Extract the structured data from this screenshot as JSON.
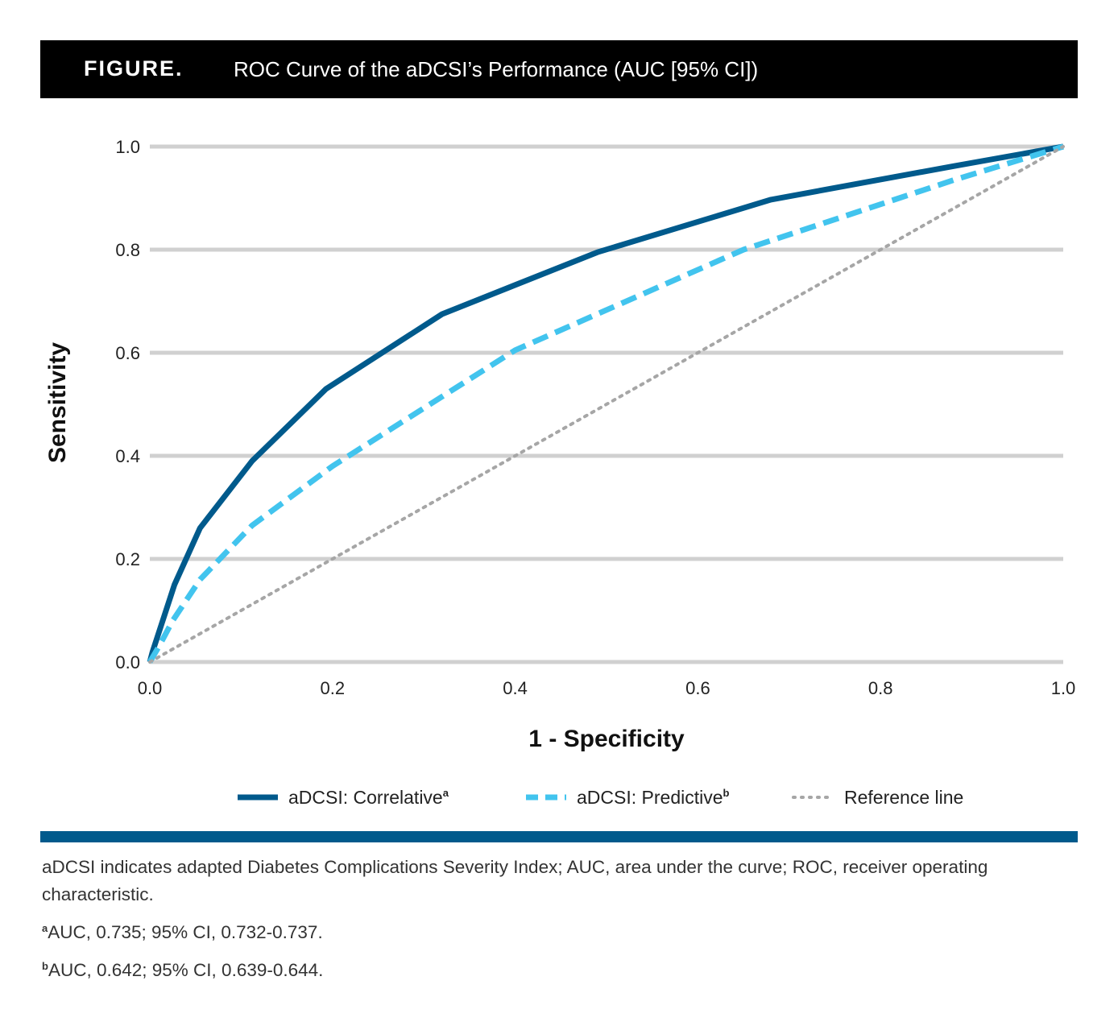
{
  "header": {
    "label": "FIGURE.",
    "title": "ROC Curve of the aDCSI’s Performance (AUC [95% CI])"
  },
  "chart_data": {
    "type": "line",
    "xlabel": "1 - Specificity",
    "ylabel": "Sensitivity",
    "xlim": [
      0,
      1
    ],
    "ylim": [
      0,
      1
    ],
    "xticks": [
      "0.0",
      "0.2",
      "0.4",
      "0.6",
      "0.8",
      "1.0"
    ],
    "yticks": [
      "0.0",
      "0.2",
      "0.4",
      "0.6",
      "0.8",
      "1.0"
    ],
    "grid": "horizontal",
    "legend_position": "bottom",
    "series": [
      {
        "name": "aDCSI: Correlative",
        "superscript": "a",
        "style": "solid",
        "color": "#005a8c",
        "x": [
          0,
          0.003,
          0.027,
          0.055,
          0.112,
          0.193,
          0.32,
          0.49,
          0.68,
          0.88,
          1.0
        ],
        "y": [
          0,
          0.02,
          0.15,
          0.26,
          0.39,
          0.53,
          0.675,
          0.795,
          0.897,
          0.962,
          1.0
        ]
      },
      {
        "name": "aDCSI: Predictive",
        "superscript": "b",
        "style": "dashed",
        "color": "#42c4ee",
        "x": [
          0,
          0.01,
          0.025,
          0.055,
          0.112,
          0.2,
          0.4,
          0.65,
          0.88,
          1.0
        ],
        "y": [
          0,
          0.03,
          0.08,
          0.16,
          0.265,
          0.38,
          0.605,
          0.8,
          0.935,
          1.0
        ]
      },
      {
        "name": "Reference line",
        "superscript": "",
        "style": "dotted",
        "color": "#a6a6a6",
        "x": [
          0,
          1
        ],
        "y": [
          0,
          1
        ]
      }
    ]
  },
  "notes": {
    "abbreviations": "aDCSI indicates adapted Diabetes Complications Severity Index; AUC, area under the curve; ROC, receiver operating characteristic.",
    "note_a_mark": "a",
    "note_a": "AUC, 0.735; 95% CI, 0.732-0.737.",
    "note_b_mark": "b",
    "note_b": "AUC, 0.642; 95% CI, 0.639-0.644."
  },
  "colors": {
    "header_bg": "#000000",
    "divider": "#005a8c",
    "grid": "#d0d0d0"
  }
}
